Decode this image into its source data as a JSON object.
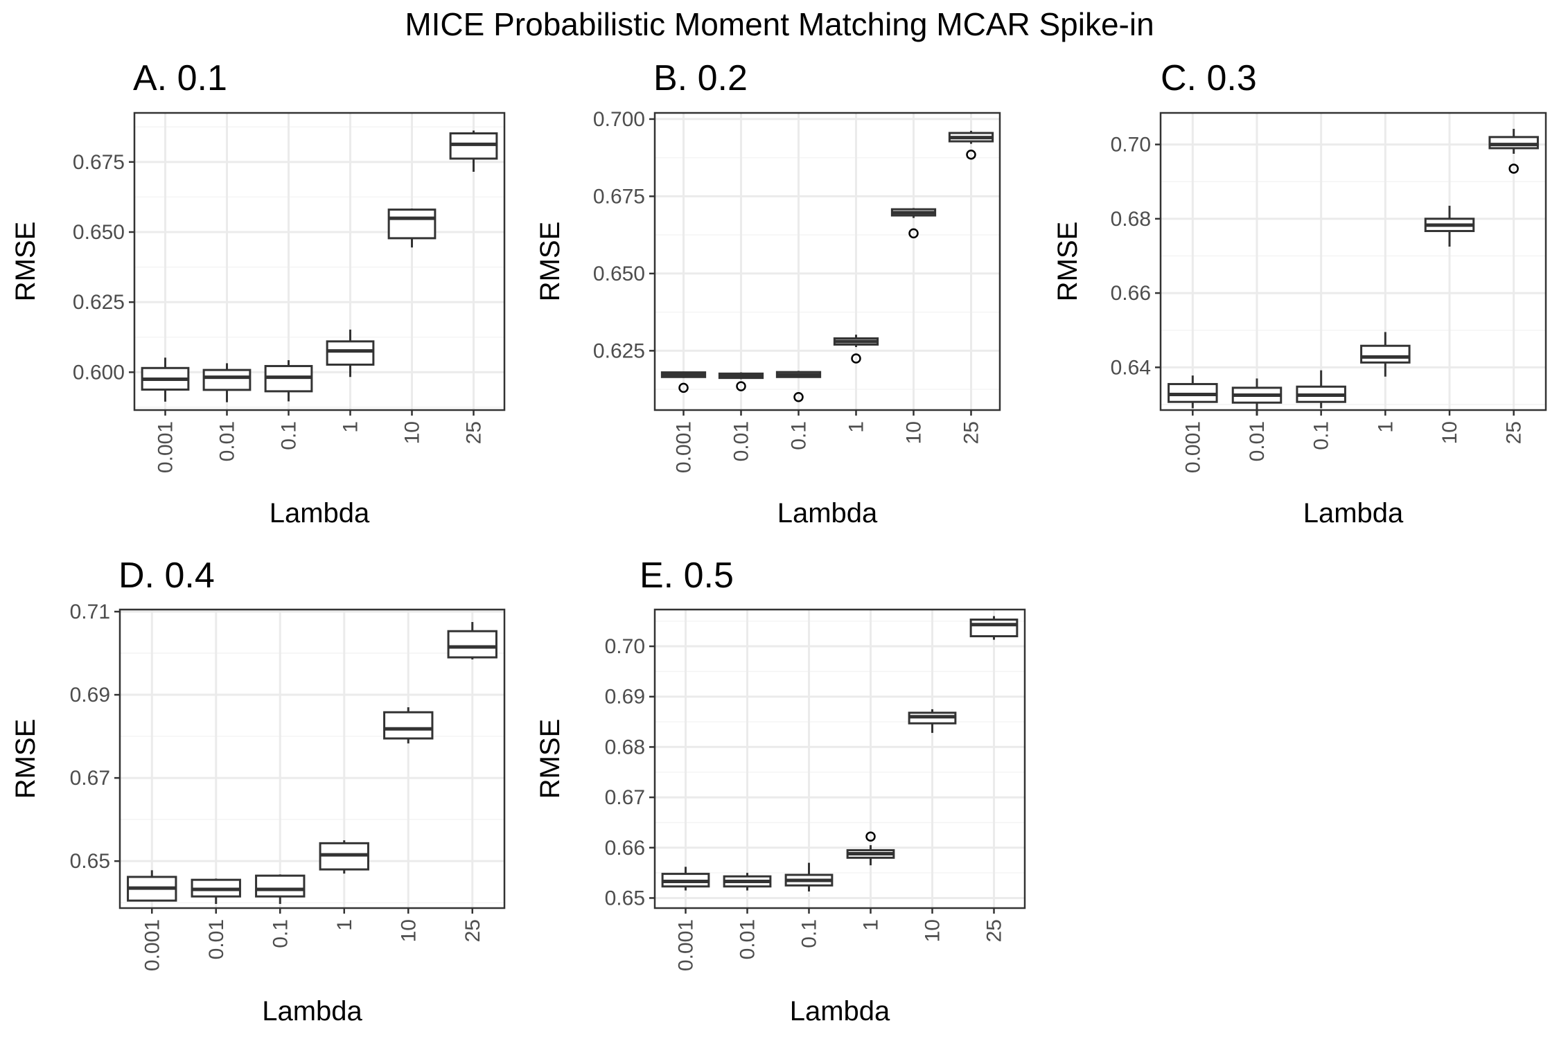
{
  "figure_title": "MICE Probabilistic Moment Matching MCAR Spike-in",
  "colors": {
    "panel_border": "#333333",
    "grid_major": "#ebebeb",
    "grid_minor": "#f4f4f4",
    "box_stroke": "#333333",
    "tick_text": "#4d4d4d"
  },
  "chart_data": [
    {
      "type": "box",
      "title": "A. 0.1",
      "xlabel": "Lambda",
      "ylabel": "RMSE",
      "categories": [
        "0.001",
        "0.01",
        "0.1",
        "1",
        "10",
        "25"
      ],
      "ylim": [
        0.5865,
        0.6925
      ],
      "yticks": [
        0.6,
        0.625,
        0.65,
        0.675
      ],
      "ytick_labels": [
        "0.600",
        "0.625",
        "0.650",
        "0.675"
      ],
      "grid": true,
      "boxes": [
        {
          "min": 0.5895,
          "q1": 0.5938,
          "median": 0.5975,
          "q3": 0.6015,
          "max": 0.6052,
          "outliers": []
        },
        {
          "min": 0.5893,
          "q1": 0.5937,
          "median": 0.5982,
          "q3": 0.6008,
          "max": 0.6032,
          "outliers": []
        },
        {
          "min": 0.5896,
          "q1": 0.5932,
          "median": 0.5982,
          "q3": 0.6022,
          "max": 0.6043,
          "outliers": []
        },
        {
          "min": 0.5983,
          "q1": 0.6027,
          "median": 0.6076,
          "q3": 0.611,
          "max": 0.6152,
          "outliers": []
        },
        {
          "min": 0.6445,
          "q1": 0.6478,
          "median": 0.6549,
          "q3": 0.658,
          "max": 0.6584,
          "outliers": []
        },
        {
          "min": 0.6715,
          "q1": 0.6762,
          "median": 0.6813,
          "q3": 0.6852,
          "max": 0.6862,
          "outliers": []
        }
      ]
    },
    {
      "type": "box",
      "title": "B. 0.2",
      "xlabel": "Lambda",
      "ylabel": "RMSE",
      "categories": [
        "0.001",
        "0.01",
        "0.1",
        "1",
        "10",
        "25"
      ],
      "ylim": [
        0.6058,
        0.702
      ],
      "yticks": [
        0.625,
        0.65,
        0.675,
        0.7
      ],
      "ytick_labels": [
        "0.625",
        "0.650",
        "0.675",
        "0.700"
      ],
      "grid": true,
      "boxes": [
        {
          "min": 0.6162,
          "q1": 0.6165,
          "median": 0.6172,
          "q3": 0.618,
          "max": 0.6182,
          "outliers": [
            0.613
          ]
        },
        {
          "min": 0.6158,
          "q1": 0.6162,
          "median": 0.617,
          "q3": 0.6176,
          "max": 0.618,
          "outliers": [
            0.6135
          ]
        },
        {
          "min": 0.6163,
          "q1": 0.6165,
          "median": 0.6172,
          "q3": 0.6181,
          "max": 0.6185,
          "outliers": [
            0.61
          ]
        },
        {
          "min": 0.6262,
          "q1": 0.627,
          "median": 0.628,
          "q3": 0.629,
          "max": 0.6302,
          "outliers": [
            0.6225
          ]
        },
        {
          "min": 0.668,
          "q1": 0.6688,
          "median": 0.6697,
          "q3": 0.6708,
          "max": 0.6712,
          "outliers": [
            0.663
          ]
        },
        {
          "min": 0.692,
          "q1": 0.6928,
          "median": 0.694,
          "q3": 0.6955,
          "max": 0.6962,
          "outliers": [
            0.6885
          ]
        }
      ]
    },
    {
      "type": "box",
      "title": "C. 0.3",
      "xlabel": "Lambda",
      "ylabel": "RMSE",
      "categories": [
        "0.001",
        "0.01",
        "0.1",
        "1",
        "10",
        "25"
      ],
      "ylim": [
        0.6285,
        0.7085
      ],
      "yticks": [
        0.64,
        0.66,
        0.68,
        0.7
      ],
      "ytick_labels": [
        "0.64",
        "0.66",
        "0.68",
        "0.70"
      ],
      "grid": true,
      "boxes": [
        {
          "min": 0.629,
          "q1": 0.6307,
          "median": 0.6327,
          "q3": 0.6355,
          "max": 0.6378,
          "outliers": []
        },
        {
          "min": 0.627,
          "q1": 0.6305,
          "median": 0.6325,
          "q3": 0.6345,
          "max": 0.637,
          "outliers": []
        },
        {
          "min": 0.629,
          "q1": 0.6307,
          "median": 0.6325,
          "q3": 0.6348,
          "max": 0.6392,
          "outliers": []
        },
        {
          "min": 0.6375,
          "q1": 0.6413,
          "median": 0.6428,
          "q3": 0.6458,
          "max": 0.6495,
          "outliers": []
        },
        {
          "min": 0.6725,
          "q1": 0.6767,
          "median": 0.6783,
          "q3": 0.68,
          "max": 0.6835,
          "outliers": []
        },
        {
          "min": 0.6975,
          "q1": 0.699,
          "median": 0.7,
          "q3": 0.702,
          "max": 0.7042,
          "outliers": [
            0.6935
          ]
        }
      ]
    },
    {
      "type": "box",
      "title": "D. 0.4",
      "xlabel": "Lambda",
      "ylabel": "RMSE",
      "categories": [
        "0.001",
        "0.01",
        "0.1",
        "1",
        "10",
        "25"
      ],
      "ylim": [
        0.6387,
        0.7105
      ],
      "yticks": [
        0.65,
        0.67,
        0.69,
        0.71
      ],
      "ytick_labels": [
        "0.65",
        "0.67",
        "0.69",
        "0.71"
      ],
      "grid": true,
      "boxes": [
        {
          "min": 0.6405,
          "q1": 0.6405,
          "median": 0.6435,
          "q3": 0.6462,
          "max": 0.6478,
          "outliers": []
        },
        {
          "min": 0.6397,
          "q1": 0.6415,
          "median": 0.6432,
          "q3": 0.6455,
          "max": 0.6458,
          "outliers": []
        },
        {
          "min": 0.6397,
          "q1": 0.6415,
          "median": 0.6432,
          "q3": 0.6465,
          "max": 0.6468,
          "outliers": []
        },
        {
          "min": 0.647,
          "q1": 0.648,
          "median": 0.6515,
          "q3": 0.6543,
          "max": 0.655,
          "outliers": []
        },
        {
          "min": 0.6783,
          "q1": 0.6795,
          "median": 0.6818,
          "q3": 0.6858,
          "max": 0.687,
          "outliers": []
        },
        {
          "min": 0.6985,
          "q1": 0.699,
          "median": 0.7015,
          "q3": 0.7053,
          "max": 0.7075,
          "outliers": []
        }
      ]
    },
    {
      "type": "box",
      "title": "E. 0.5",
      "xlabel": "Lambda",
      "ylabel": "RMSE",
      "categories": [
        "0.001",
        "0.01",
        "0.1",
        "1",
        "10",
        "25"
      ],
      "ylim": [
        0.648,
        0.7073
      ],
      "yticks": [
        0.65,
        0.66,
        0.67,
        0.68,
        0.69,
        0.7
      ],
      "ytick_labels": [
        "0.65",
        "0.66",
        "0.67",
        "0.68",
        "0.69",
        "0.70"
      ],
      "grid": true,
      "boxes": [
        {
          "min": 0.6515,
          "q1": 0.6523,
          "median": 0.6533,
          "q3": 0.6548,
          "max": 0.6562,
          "outliers": []
        },
        {
          "min": 0.6515,
          "q1": 0.6523,
          "median": 0.6533,
          "q3": 0.6543,
          "max": 0.655,
          "outliers": []
        },
        {
          "min": 0.6513,
          "q1": 0.6525,
          "median": 0.6535,
          "q3": 0.6546,
          "max": 0.657,
          "outliers": []
        },
        {
          "min": 0.6565,
          "q1": 0.658,
          "median": 0.6588,
          "q3": 0.6595,
          "max": 0.6605,
          "outliers": [
            0.6622
          ]
        },
        {
          "min": 0.6828,
          "q1": 0.6847,
          "median": 0.686,
          "q3": 0.6868,
          "max": 0.6875,
          "outliers": []
        },
        {
          "min": 0.7013,
          "q1": 0.702,
          "median": 0.7043,
          "q3": 0.7053,
          "max": 0.706,
          "outliers": []
        }
      ]
    }
  ]
}
